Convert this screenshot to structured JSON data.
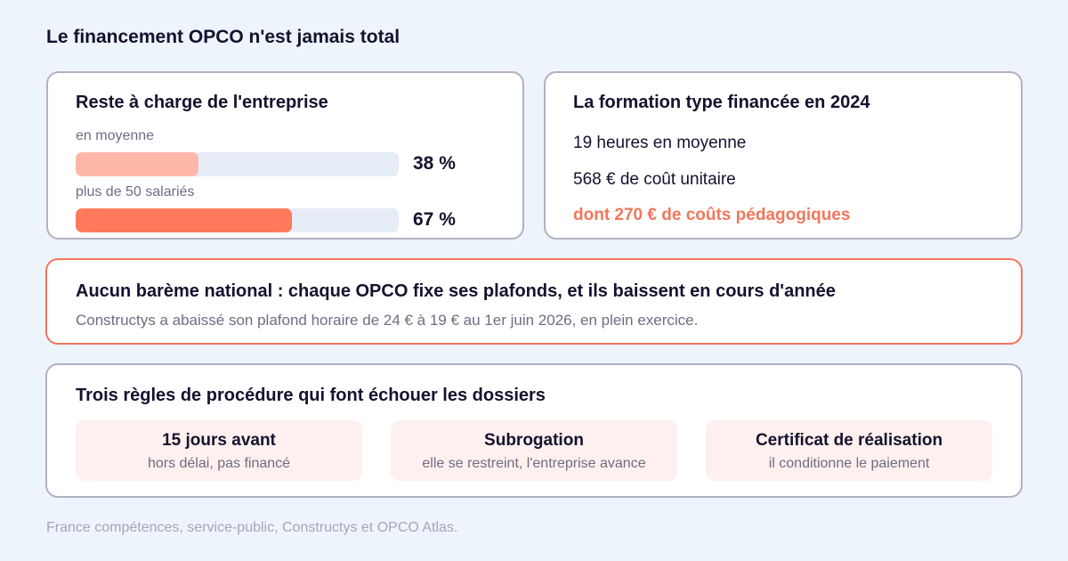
{
  "title": "Le financement OPCO n'est jamais total",
  "colors": {
    "accent": "#f2765c",
    "bar_light": "#ffb8a8",
    "bar_strong": "#ff7a5c",
    "track": "#e6edf7",
    "rule_bg": "#fdf0ee",
    "background": "#eef4fc"
  },
  "reste_a_charge": {
    "heading": "Reste à charge de l'entreprise",
    "bars": [
      {
        "label": "en moyenne",
        "value_text": "38 %",
        "percent": 38,
        "color": "#ffb8a8"
      },
      {
        "label": "plus de 50 salariés",
        "value_text": "67 %",
        "percent": 67,
        "color": "#ff7a5c"
      }
    ]
  },
  "formation": {
    "heading": "La formation type financée en 2024",
    "lines": [
      "19 heures en moyenne",
      "568 € de coût unitaire",
      "dont 270 € de coûts pédagogiques"
    ]
  },
  "alert": {
    "heading": "Aucun barème national : chaque OPCO fixe ses plafonds, et ils baissent en cours d'année",
    "text": "Constructys a abaissé son plafond horaire de 24 € à 19 € au 1er juin 2026, en plein exercice."
  },
  "rules": {
    "heading": "Trois règles de procédure qui font échouer les dossiers",
    "items": [
      {
        "title": "15 jours avant",
        "subtitle": "hors délai, pas financé"
      },
      {
        "title": "Subrogation",
        "subtitle": "elle se restreint, l'entreprise avance"
      },
      {
        "title": "Certificat de réalisation",
        "subtitle": "il conditionne le paiement"
      }
    ]
  },
  "source": "France compétences, service-public, Constructys et OPCO Atlas."
}
